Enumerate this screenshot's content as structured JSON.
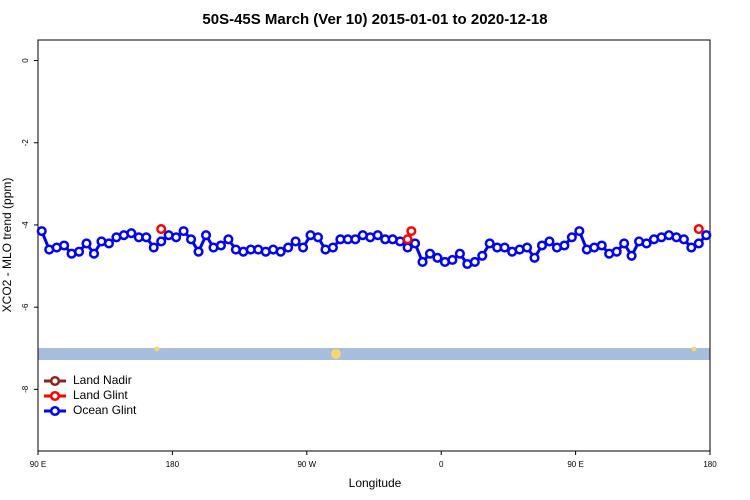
{
  "chart_data": {
    "type": "line",
    "title": "50S-45S March (Ver 10)   2015-01-01 to 2020-12-18",
    "x_label": "Longitude",
    "y_label": "XCO2 - MLO trend (ppm)",
    "xlim": [
      90,
      540
    ],
    "xticks": [
      {
        "value": 90,
        "label": "90 E"
      },
      180,
      {
        "value": 270,
        "label": "90 W"
      },
      {
        "value": 360,
        "label": "0"
      },
      {
        "value": 450,
        "label": "90 E"
      },
      {
        "value": 540,
        "label": "180"
      }
    ],
    "ylim": [
      -9.5,
      0.5
    ],
    "yticks": [
      0,
      -2,
      -4,
      -6,
      -8
    ],
    "legend": "bottom-left",
    "series": [
      {
        "name": "Land Nadir",
        "color": "#8b2323",
        "x": [],
        "values": []
      },
      {
        "name": "Land Glint",
        "color": "#ff0000",
        "x": [
          172.5,
          null,
          337.5,
          340,
          null,
          532.5
        ],
        "values": [
          -4.1,
          null,
          -4.35,
          -4.15,
          null,
          -4.1
        ]
      },
      {
        "name": "Ocean Glint",
        "color": "#0000ff",
        "x": [
          92.5,
          97.5,
          102.5,
          107.5,
          112.5,
          117.5,
          122.5,
          127.5,
          132.5,
          137.5,
          142.5,
          147.5,
          152.5,
          157.5,
          162.5,
          167.5,
          172.5,
          177.5,
          182.5,
          187.5,
          192.5,
          197.5,
          202.5,
          207.5,
          212.5,
          217.5,
          222.5,
          227.5,
          232.5,
          237.5,
          242.5,
          247.5,
          252.5,
          257.5,
          262.5,
          267.5,
          272.5,
          277.5,
          282.5,
          287.5,
          292.5,
          297.5,
          302.5,
          307.5,
          312.5,
          317.5,
          322.5,
          327.5,
          332.5,
          337.5,
          342.5,
          347.5,
          352.5,
          357.5,
          362.5,
          367.5,
          372.5,
          377.5,
          382.5,
          387.5,
          392.5,
          397.5,
          402.5,
          407.5,
          412.5,
          417.5,
          422.5,
          427.5,
          432.5,
          437.5,
          442.5,
          447.5,
          452.5,
          457.5,
          462.5,
          467.5,
          472.5,
          477.5,
          482.5,
          487.5,
          492.5,
          497.5,
          502.5,
          507.5,
          512.5,
          517.5,
          522.5,
          527.5,
          532.5,
          537.5
        ],
        "values": [
          -4.15,
          -4.6,
          -4.55,
          -4.5,
          -4.7,
          -4.65,
          -4.45,
          -4.7,
          -4.4,
          -4.45,
          -4.3,
          -4.25,
          -4.2,
          -4.3,
          -4.3,
          -4.55,
          -4.4,
          -4.25,
          -4.3,
          -4.15,
          -4.35,
          -4.65,
          -4.25,
          -4.55,
          -4.5,
          -4.35,
          -4.6,
          -4.65,
          -4.6,
          -4.6,
          -4.65,
          -4.6,
          -4.65,
          -4.55,
          -4.4,
          -4.55,
          -4.25,
          -4.3,
          -4.6,
          -4.55,
          -4.35,
          -4.35,
          -4.35,
          -4.25,
          -4.3,
          -4.25,
          -4.35,
          -4.35,
          -4.4,
          -4.55,
          -4.45,
          -4.9,
          -4.7,
          -4.8,
          -4.9,
          -4.85,
          -4.7,
          -4.95,
          -4.9,
          -4.75,
          -4.45,
          -4.55,
          -4.55,
          -4.65,
          -4.6,
          -4.55,
          -4.8,
          -4.5,
          -4.4,
          -4.55,
          -4.5,
          -4.3,
          -4.15,
          -4.6,
          -4.55,
          -4.5,
          -4.7,
          -4.65,
          -4.45,
          -4.75,
          -4.4,
          -4.45,
          -4.35,
          -4.3,
          -4.25,
          -4.3,
          -4.35,
          -4.55,
          -4.45,
          -4.25
        ]
      }
    ]
  }
}
